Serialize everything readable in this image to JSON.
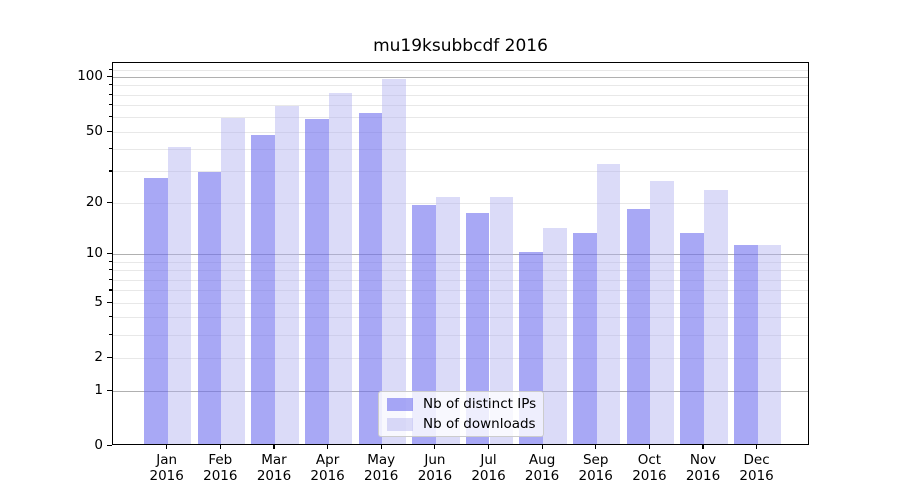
{
  "chart_data": {
    "type": "bar",
    "title": "mu19ksubbcdf 2016",
    "categories": [
      "Jan",
      "Feb",
      "Mar",
      "Apr",
      "May",
      "Jun",
      "Jul",
      "Aug",
      "Sep",
      "Oct",
      "Nov",
      "Dec"
    ],
    "year_label": "2016",
    "series": [
      {
        "name": "Nb of distinct IPs",
        "color": "#6e6eee",
        "alpha": 0.6,
        "values": [
          27,
          29,
          47,
          57,
          62,
          19,
          17,
          10,
          13,
          18,
          13,
          11
        ]
      },
      {
        "name": "Nb of downloads",
        "color": "#b0b0f0",
        "alpha": 0.45,
        "values": [
          40,
          58,
          68,
          80,
          95,
          21,
          21,
          14,
          32,
          26,
          23,
          11
        ]
      }
    ],
    "xlabel": "",
    "ylabel": "",
    "yscale": "log10(value+1)",
    "ylim": [
      0,
      119
    ],
    "yticks": [
      0,
      1,
      2,
      5,
      10,
      20,
      50,
      100
    ],
    "major_gridlines": [
      1,
      10,
      100
    ],
    "minor_gridlines": [
      2,
      3,
      4,
      5,
      6,
      7,
      8,
      9,
      20,
      30,
      40,
      50,
      60,
      70,
      80,
      90,
      110
    ],
    "grid": "on",
    "legend_position": "lower center"
  },
  "styles": {
    "grid_major_color": "#b0b0b0",
    "grid_minor_color": "#e8e8e8",
    "spine_color": "#000000",
    "background_color": "#ffffff"
  }
}
